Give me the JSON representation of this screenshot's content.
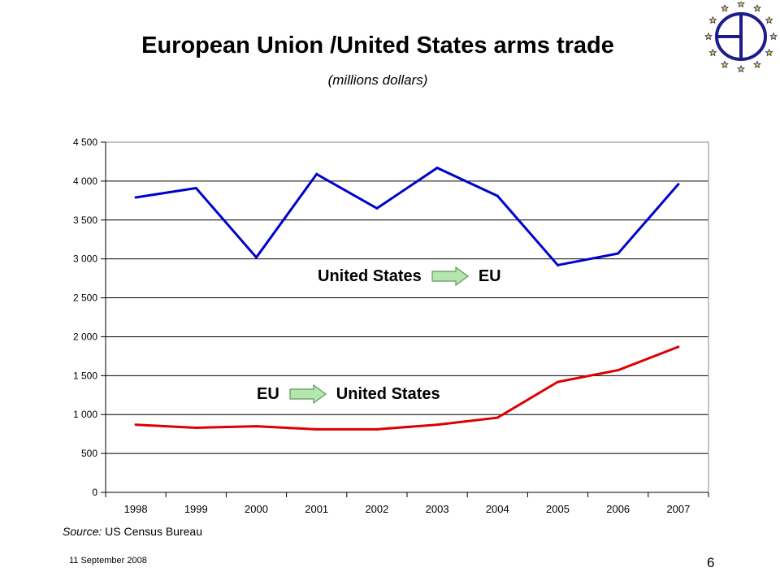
{
  "slide": {
    "title": "European Union /United States arms trade",
    "subtitle": "(millions dollars)",
    "source_label": "Source:",
    "source_text": " US Census Bureau",
    "date": "11 September 2008",
    "page_number": "6"
  },
  "annotations": {
    "top": {
      "from": "United States",
      "to": "EU"
    },
    "bottom": {
      "from": "EU",
      "to": "United States"
    },
    "arrow_color": "#b6e6b0"
  },
  "logo": {
    "icon": "eu-star-circle-logo",
    "color": "#1c1c8c",
    "star_color": "#ffd700"
  },
  "chart_data": {
    "type": "line",
    "categories": [
      "1998",
      "1999",
      "2000",
      "2001",
      "2002",
      "2003",
      "2004",
      "2005",
      "2006",
      "2007"
    ],
    "series": [
      {
        "color": "#0000cc",
        "values": [
          3790,
          3910,
          3020,
          4090,
          3650,
          4170,
          3810,
          2920,
          3070,
          3960
        ]
      },
      {
        "color": "#dd0000",
        "values": [
          870,
          830,
          850,
          810,
          810,
          870,
          960,
          1420,
          1570,
          1870
        ]
      }
    ],
    "ylim": [
      0,
      4500
    ],
    "yticks": [
      0,
      500,
      1000,
      1500,
      2000,
      2500,
      3000,
      3500,
      4000,
      4500
    ],
    "ytick_labels": [
      "0",
      "500",
      "1 000",
      "1 500",
      "2 000",
      "2 500",
      "3 000",
      "3 500",
      "4 000",
      "4 500"
    ],
    "grid": true,
    "title": "",
    "xlabel": "",
    "ylabel": ""
  }
}
